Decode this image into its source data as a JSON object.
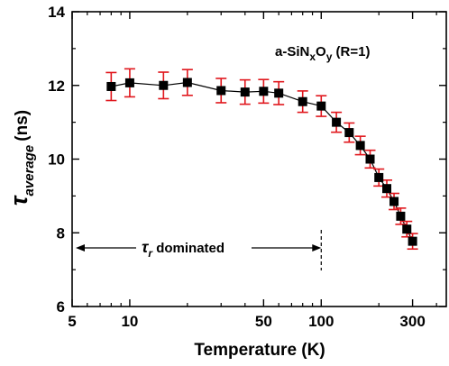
{
  "chart_data": {
    "type": "scatter",
    "title": "",
    "xlabel": "Temperature (K)",
    "ylabel_symbol": "τ",
    "ylabel_subscript": "average",
    "ylabel_unit": "(ns)",
    "x_scale": "log",
    "xlim": [
      5,
      450
    ],
    "ylim": [
      6,
      14
    ],
    "x_ticks": [
      5,
      10,
      50,
      100,
      300
    ],
    "x_tick_labels": [
      "5",
      "10",
      "50",
      "100",
      "300"
    ],
    "y_ticks": [
      6,
      8,
      10,
      12,
      14
    ],
    "y_tick_labels": [
      "6",
      "8",
      "10",
      "12",
      "14"
    ],
    "grid": false,
    "series": [
      {
        "marker": "square",
        "marker_color": "#000000",
        "line_color": "#000000",
        "errorbar_color": "#e0161c",
        "x": [
          8,
          10,
          15,
          20,
          30,
          40,
          50,
          60,
          80,
          100,
          120,
          140,
          160,
          180,
          200,
          220,
          240,
          260,
          280,
          300
        ],
        "y": [
          11.97,
          12.07,
          12.0,
          12.08,
          11.86,
          11.82,
          11.84,
          11.79,
          11.56,
          11.44,
          11.0,
          10.72,
          10.37,
          10.0,
          9.5,
          9.2,
          8.85,
          8.45,
          8.1,
          7.77
        ],
        "err": [
          0.38,
          0.38,
          0.36,
          0.35,
          0.33,
          0.33,
          0.32,
          0.31,
          0.29,
          0.28,
          0.27,
          0.26,
          0.25,
          0.24,
          0.23,
          0.23,
          0.22,
          0.22,
          0.21,
          0.21
        ]
      }
    ],
    "annotations": {
      "sample_label_main": "a-SiN",
      "sample_sub_x": "x",
      "sample_mid": "O",
      "sample_sub_y": "y",
      "sample_suffix": " (R=1)",
      "regime_symbol": "τ",
      "regime_sub": "r",
      "regime_text": " dominated",
      "regime_boundary_x": 100
    }
  }
}
